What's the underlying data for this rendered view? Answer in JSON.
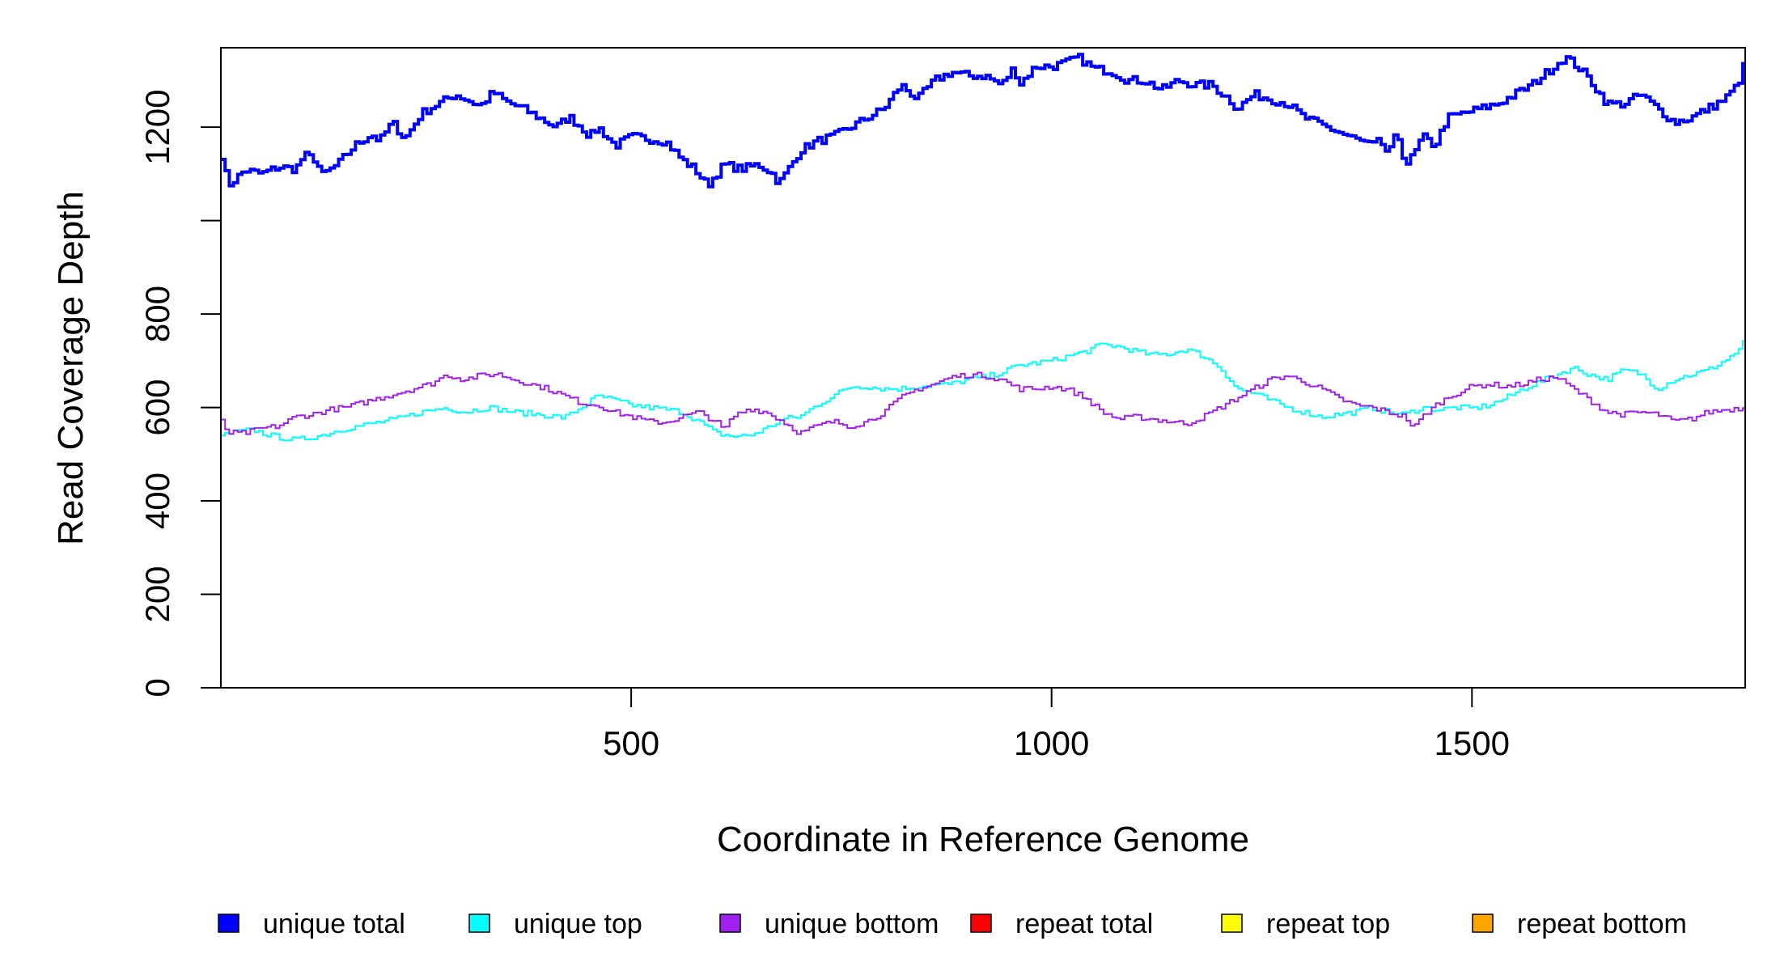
{
  "chart_data": {
    "type": "line",
    "title": "",
    "xlabel": "Coordinate in Reference Genome",
    "ylabel": "Read Coverage Depth",
    "xlim": [
      12,
      1825
    ],
    "ylim": [
      0,
      1370
    ],
    "x_ticks": [
      500,
      1000,
      1500
    ],
    "x_tick_labels": [
      "500",
      "1000",
      "1500"
    ],
    "y_ticks": [
      0,
      200,
      400,
      600,
      800,
      1000,
      1200
    ],
    "y_tick_labels": [
      "0",
      "200",
      "400",
      "600",
      "800",
      "",
      "1200"
    ],
    "grid": false,
    "legend_position": "bottom",
    "step_size": 5,
    "series": [
      {
        "name": "unique total",
        "color": "#0000FF",
        "points": [
          [
            12,
            1140
          ],
          [
            20,
            1075
          ],
          [
            40,
            1108
          ],
          [
            60,
            1100
          ],
          [
            80,
            1115
          ],
          [
            100,
            1110
          ],
          [
            110,
            1140
          ],
          [
            125,
            1130
          ],
          [
            130,
            1095
          ],
          [
            150,
            1120
          ],
          [
            170,
            1160
          ],
          [
            190,
            1185
          ],
          [
            200,
            1170
          ],
          [
            215,
            1210
          ],
          [
            230,
            1175
          ],
          [
            250,
            1230
          ],
          [
            270,
            1250
          ],
          [
            290,
            1270
          ],
          [
            300,
            1262
          ],
          [
            320,
            1245
          ],
          [
            335,
            1275
          ],
          [
            350,
            1255
          ],
          [
            370,
            1240
          ],
          [
            390,
            1220
          ],
          [
            410,
            1200
          ],
          [
            425,
            1222
          ],
          [
            440,
            1200
          ],
          [
            450,
            1180
          ],
          [
            460,
            1200
          ],
          [
            480,
            1160
          ],
          [
            500,
            1180
          ],
          [
            520,
            1175
          ],
          [
            540,
            1170
          ],
          [
            560,
            1130
          ],
          [
            575,
            1110
          ],
          [
            590,
            1075
          ],
          [
            610,
            1120
          ],
          [
            630,
            1110
          ],
          [
            650,
            1120
          ],
          [
            665,
            1105
          ],
          [
            675,
            1080
          ],
          [
            690,
            1120
          ],
          [
            700,
            1150
          ],
          [
            720,
            1170
          ],
          [
            740,
            1180
          ],
          [
            760,
            1200
          ],
          [
            780,
            1220
          ],
          [
            800,
            1240
          ],
          [
            820,
            1290
          ],
          [
            840,
            1260
          ],
          [
            860,
            1300
          ],
          [
            880,
            1318
          ],
          [
            900,
            1310
          ],
          [
            920,
            1310
          ],
          [
            940,
            1290
          ],
          [
            955,
            1330
          ],
          [
            960,
            1290
          ],
          [
            980,
            1330
          ],
          [
            1000,
            1330
          ],
          [
            1020,
            1340
          ],
          [
            1030,
            1350
          ],
          [
            1050,
            1325
          ],
          [
            1070,
            1320
          ],
          [
            1090,
            1300
          ],
          [
            1110,
            1300
          ],
          [
            1130,
            1280
          ],
          [
            1150,
            1300
          ],
          [
            1170,
            1290
          ],
          [
            1190,
            1290
          ],
          [
            1210,
            1260
          ],
          [
            1220,
            1240
          ],
          [
            1240,
            1270
          ],
          [
            1260,
            1260
          ],
          [
            1280,
            1250
          ],
          [
            1300,
            1220
          ],
          [
            1320,
            1205
          ],
          [
            1340,
            1190
          ],
          [
            1360,
            1175
          ],
          [
            1380,
            1160
          ],
          [
            1390,
            1170
          ],
          [
            1400,
            1140
          ],
          [
            1410,
            1190
          ],
          [
            1420,
            1120
          ],
          [
            1430,
            1140
          ],
          [
            1440,
            1180
          ],
          [
            1455,
            1160
          ],
          [
            1470,
            1220
          ],
          [
            1490,
            1230
          ],
          [
            1510,
            1240
          ],
          [
            1530,
            1250
          ],
          [
            1550,
            1270
          ],
          [
            1570,
            1290
          ],
          [
            1590,
            1320
          ],
          [
            1610,
            1350
          ],
          [
            1625,
            1330
          ],
          [
            1640,
            1300
          ],
          [
            1660,
            1250
          ],
          [
            1680,
            1250
          ],
          [
            1700,
            1270
          ],
          [
            1720,
            1240
          ],
          [
            1740,
            1210
          ],
          [
            1760,
            1220
          ],
          [
            1780,
            1240
          ],
          [
            1800,
            1260
          ],
          [
            1815,
            1290
          ],
          [
            1825,
            1345
          ]
        ]
      },
      {
        "name": "unique top",
        "color": "#00FFFF",
        "points": [
          [
            12,
            540
          ],
          [
            30,
            548
          ],
          [
            50,
            552
          ],
          [
            70,
            540
          ],
          [
            100,
            530
          ],
          [
            130,
            540
          ],
          [
            160,
            555
          ],
          [
            190,
            565
          ],
          [
            220,
            575
          ],
          [
            250,
            590
          ],
          [
            280,
            600
          ],
          [
            300,
            590
          ],
          [
            330,
            600
          ],
          [
            360,
            590
          ],
          [
            390,
            585
          ],
          [
            420,
            578
          ],
          [
            440,
            600
          ],
          [
            460,
            625
          ],
          [
            480,
            615
          ],
          [
            500,
            605
          ],
          [
            520,
            600
          ],
          [
            540,
            596
          ],
          [
            560,
            590
          ],
          [
            580,
            570
          ],
          [
            600,
            545
          ],
          [
            620,
            538
          ],
          [
            640,
            540
          ],
          [
            660,
            555
          ],
          [
            680,
            575
          ],
          [
            700,
            580
          ],
          [
            720,
            605
          ],
          [
            740,
            625
          ],
          [
            760,
            645
          ],
          [
            780,
            645
          ],
          [
            800,
            640
          ],
          [
            820,
            640
          ],
          [
            840,
            645
          ],
          [
            860,
            648
          ],
          [
            880,
            650
          ],
          [
            900,
            660
          ],
          [
            920,
            665
          ],
          [
            940,
            675
          ],
          [
            960,
            690
          ],
          [
            980,
            695
          ],
          [
            1000,
            700
          ],
          [
            1020,
            710
          ],
          [
            1040,
            720
          ],
          [
            1060,
            735
          ],
          [
            1080,
            730
          ],
          [
            1100,
            720
          ],
          [
            1120,
            712
          ],
          [
            1140,
            715
          ],
          [
            1160,
            725
          ],
          [
            1180,
            710
          ],
          [
            1200,
            685
          ],
          [
            1220,
            640
          ],
          [
            1240,
            630
          ],
          [
            1260,
            615
          ],
          [
            1280,
            600
          ],
          [
            1300,
            590
          ],
          [
            1320,
            580
          ],
          [
            1340,
            585
          ],
          [
            1360,
            590
          ],
          [
            1380,
            600
          ],
          [
            1400,
            590
          ],
          [
            1420,
            585
          ],
          [
            1440,
            600
          ],
          [
            1460,
            595
          ],
          [
            1480,
            600
          ],
          [
            1500,
            598
          ],
          [
            1520,
            605
          ],
          [
            1540,
            620
          ],
          [
            1560,
            640
          ],
          [
            1580,
            655
          ],
          [
            1600,
            670
          ],
          [
            1620,
            685
          ],
          [
            1640,
            670
          ],
          [
            1660,
            660
          ],
          [
            1680,
            680
          ],
          [
            1700,
            672
          ],
          [
            1720,
            640
          ],
          [
            1740,
            660
          ],
          [
            1760,
            670
          ],
          [
            1780,
            680
          ],
          [
            1800,
            700
          ],
          [
            1815,
            720
          ],
          [
            1825,
            745
          ]
        ]
      },
      {
        "name": "unique bottom",
        "color": "#A020F0",
        "points": [
          [
            12,
            570
          ],
          [
            20,
            545
          ],
          [
            40,
            545
          ],
          [
            60,
            555
          ],
          [
            80,
            560
          ],
          [
            100,
            580
          ],
          [
            120,
            585
          ],
          [
            140,
            595
          ],
          [
            160,
            600
          ],
          [
            180,
            610
          ],
          [
            200,
            620
          ],
          [
            220,
            630
          ],
          [
            240,
            640
          ],
          [
            260,
            650
          ],
          [
            280,
            670
          ],
          [
            300,
            660
          ],
          [
            320,
            668
          ],
          [
            340,
            672
          ],
          [
            360,
            660
          ],
          [
            380,
            650
          ],
          [
            400,
            640
          ],
          [
            420,
            625
          ],
          [
            440,
            610
          ],
          [
            460,
            605
          ],
          [
            480,
            590
          ],
          [
            500,
            580
          ],
          [
            520,
            570
          ],
          [
            540,
            568
          ],
          [
            560,
            580
          ],
          [
            580,
            590
          ],
          [
            600,
            570
          ],
          [
            610,
            550
          ],
          [
            620,
            580
          ],
          [
            640,
            598
          ],
          [
            660,
            590
          ],
          [
            680,
            570
          ],
          [
            700,
            545
          ],
          [
            720,
            560
          ],
          [
            740,
            570
          ],
          [
            760,
            560
          ],
          [
            780,
            570
          ],
          [
            800,
            590
          ],
          [
            820,
            620
          ],
          [
            840,
            640
          ],
          [
            860,
            650
          ],
          [
            880,
            665
          ],
          [
            900,
            670
          ],
          [
            920,
            668
          ],
          [
            940,
            660
          ],
          [
            960,
            640
          ],
          [
            980,
            640
          ],
          [
            1000,
            645
          ],
          [
            1020,
            638
          ],
          [
            1040,
            620
          ],
          [
            1060,
            590
          ],
          [
            1080,
            575
          ],
          [
            1100,
            580
          ],
          [
            1120,
            575
          ],
          [
            1140,
            570
          ],
          [
            1160,
            565
          ],
          [
            1180,
            580
          ],
          [
            1200,
            600
          ],
          [
            1220,
            620
          ],
          [
            1240,
            640
          ],
          [
            1260,
            660
          ],
          [
            1280,
            668
          ],
          [
            1300,
            655
          ],
          [
            1320,
            640
          ],
          [
            1340,
            620
          ],
          [
            1360,
            605
          ],
          [
            1380,
            600
          ],
          [
            1400,
            590
          ],
          [
            1420,
            580
          ],
          [
            1430,
            555
          ],
          [
            1440,
            580
          ],
          [
            1460,
            610
          ],
          [
            1480,
            630
          ],
          [
            1500,
            645
          ],
          [
            1520,
            650
          ],
          [
            1540,
            645
          ],
          [
            1560,
            650
          ],
          [
            1580,
            660
          ],
          [
            1600,
            665
          ],
          [
            1620,
            640
          ],
          [
            1640,
            615
          ],
          [
            1660,
            590
          ],
          [
            1680,
            585
          ],
          [
            1700,
            590
          ],
          [
            1720,
            585
          ],
          [
            1740,
            570
          ],
          [
            1760,
            575
          ],
          [
            1780,
            590
          ],
          [
            1800,
            595
          ],
          [
            1825,
            600
          ]
        ]
      },
      {
        "name": "repeat total",
        "color": "#FF0000",
        "points": [
          [
            12,
            0
          ],
          [
            1825,
            0
          ]
        ]
      },
      {
        "name": "repeat top",
        "color": "#FFFF00",
        "points": [
          [
            12,
            0
          ],
          [
            1825,
            0
          ]
        ]
      },
      {
        "name": "repeat bottom",
        "color": "#FFA500",
        "points": [
          [
            12,
            0
          ],
          [
            1825,
            0
          ]
        ]
      }
    ]
  }
}
